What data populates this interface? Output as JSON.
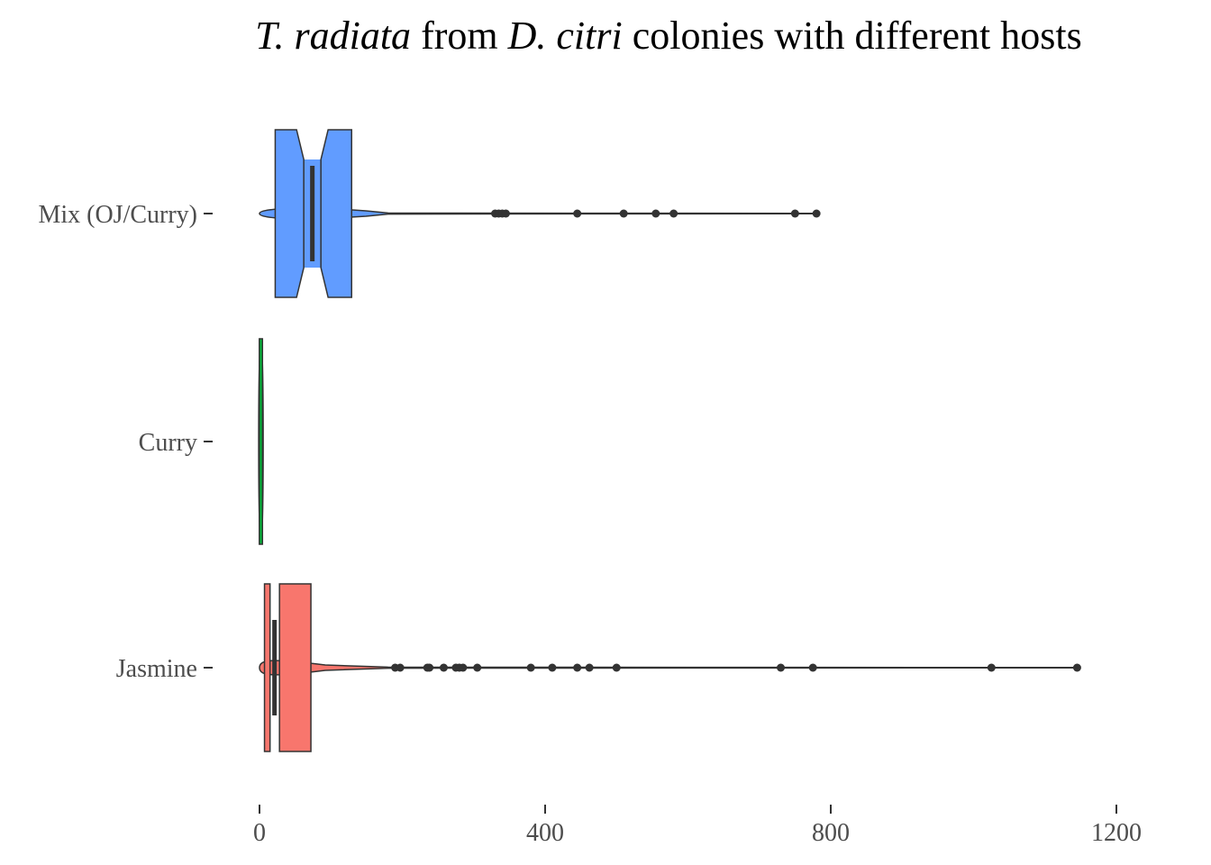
{
  "chart_data": {
    "type": "boxplot",
    "orientation": "horizontal",
    "title": {
      "parts": [
        {
          "text": "T. radiata",
          "italic": true
        },
        {
          "text": " from ",
          "italic": false
        },
        {
          "text": "D. citri",
          "italic": true
        },
        {
          "text": " colonies with different hosts",
          "italic": false
        }
      ]
    },
    "xlabel": "",
    "ylabel": "",
    "xlim": [
      -10,
      1200
    ],
    "x_ticks": [
      0,
      400,
      800,
      1200
    ],
    "categories": [
      "Mix (OJ/Curry)",
      "Curry",
      "Jasmine"
    ],
    "grid": false,
    "legend": "none",
    "series": [
      {
        "category": "Mix (OJ/Curry)",
        "color": "#619CFF",
        "q1": 22,
        "median": 74,
        "q3": 129,
        "notch_low": 62,
        "notch_high": 86,
        "outliers": [
          330,
          335,
          340,
          345,
          445,
          510,
          555,
          580,
          750,
          780
        ]
      },
      {
        "category": "Curry",
        "color": "#00BA38",
        "q1": 1,
        "median": 2,
        "q3": 3,
        "notch_low": 1,
        "notch_high": 3,
        "outliers": []
      },
      {
        "category": "Jasmine",
        "color": "#F8766D",
        "q1": 7,
        "median": 21,
        "q3": 72,
        "notch_low": 16,
        "notch_high": 28,
        "outliers": [
          190,
          197,
          235,
          238,
          258,
          275,
          280,
          285,
          305,
          380,
          410,
          445,
          462,
          500,
          730,
          775,
          1025,
          1145
        ]
      }
    ]
  }
}
